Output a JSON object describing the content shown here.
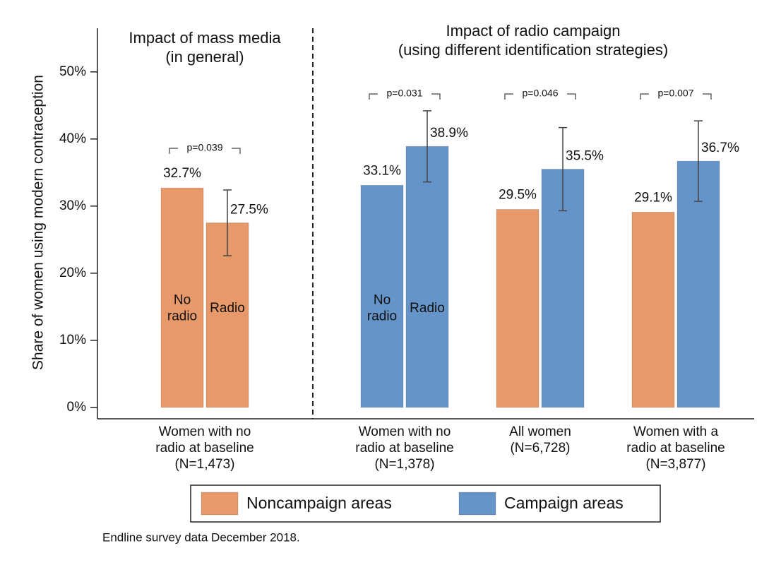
{
  "chart_data": {
    "type": "grouped_bar",
    "ylabel": "Share of women using modern contraception",
    "ylim": [
      -1.7,
      56.5
    ],
    "yticks": [
      {
        "value": 0,
        "label": "0%"
      },
      {
        "value": 10,
        "label": "10%"
      },
      {
        "value": 20,
        "label": "20%"
      },
      {
        "value": 30,
        "label": "30%"
      },
      {
        "value": 40,
        "label": "40%"
      },
      {
        "value": 50,
        "label": "50%"
      }
    ],
    "panels": [
      {
        "title": [
          "Impact of mass media",
          "(in general)"
        ]
      },
      {
        "title": [
          "Impact of radio campaign",
          "(using different identification strategies)"
        ]
      }
    ],
    "categories": [
      [
        "Women with no",
        "radio at baseline",
        "(N=1,473)"
      ],
      [
        "Women with no",
        "radio at baseline",
        "(N=1,378)"
      ],
      [
        "All women",
        "(N=6,728)"
      ],
      [
        "Women with a",
        "radio at baseline",
        "(N=3,877)"
      ]
    ],
    "groups": [
      {
        "values": [
          32.7,
          27.5
        ],
        "value_labels": [
          "32.7%",
          "27.5%"
        ],
        "colors": [
          "#e8996a",
          "#e8996a"
        ],
        "errors": [
          null,
          4.9
        ],
        "bar_labels": [
          [
            "No",
            "radio"
          ],
          [
            "Radio"
          ]
        ],
        "p_label": "p=0.039"
      },
      {
        "values": [
          33.1,
          38.9
        ],
        "value_labels": [
          "33.1%",
          "38.9%"
        ],
        "colors": [
          "#6594c8",
          "#6594c8"
        ],
        "errors": [
          null,
          5.3
        ],
        "bar_labels": [
          [
            "No",
            "radio"
          ],
          [
            "Radio"
          ]
        ],
        "p_label": "p=0.031"
      },
      {
        "values": [
          29.5,
          35.5
        ],
        "value_labels": [
          "29.5%",
          "35.5%"
        ],
        "colors": [
          "#e8996a",
          "#6594c8"
        ],
        "errors": [
          null,
          6.2
        ],
        "p_label": "p=0.046"
      },
      {
        "values": [
          29.1,
          36.7
        ],
        "value_labels": [
          "29.1%",
          "36.7%"
        ],
        "colors": [
          "#e8996a",
          "#6594c8"
        ],
        "errors": [
          null,
          6.0
        ],
        "p_label": "p=0.007"
      }
    ],
    "legend": [
      {
        "name": "Noncampaign areas",
        "color": "#e8996a"
      },
      {
        "name": "Campaign areas",
        "color": "#6594c8"
      }
    ],
    "note": "Endline survey data December 2018."
  }
}
